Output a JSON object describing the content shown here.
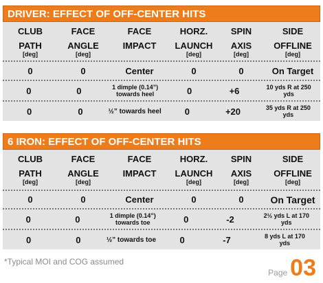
{
  "headers": [
    {
      "l1": "CLUB",
      "l2": "PATH",
      "l3": "[deg]"
    },
    {
      "l1": "FACE",
      "l2": "ANGLE",
      "l3": "[deg]"
    },
    {
      "l1": "FACE",
      "l2": "IMPACT",
      "l3": ""
    },
    {
      "l1": "HORZ.",
      "l2": "LAUNCH",
      "l3": "[deg]"
    },
    {
      "l1": "SPIN",
      "l2": "AXIS",
      "l3": "[deg]"
    },
    {
      "l1": "SIDE",
      "l2": "OFFLINE",
      "l3": "[deg]"
    }
  ],
  "driver": {
    "title": "DRIVER: EFFECT OF OFF-CENTER HITS",
    "rows": [
      {
        "path": "0",
        "angle": "0",
        "impact": "Center",
        "launch": "0",
        "axis": "0",
        "offline": "On Target"
      },
      {
        "path": "0",
        "angle": "0",
        "impact": "1 dimple (0.14”) towards heel",
        "launch": "0",
        "axis": "+6",
        "offline": "10 yds R at 250 yds"
      },
      {
        "path": "0",
        "angle": "0",
        "impact": "½” towards heel",
        "launch": "0",
        "axis": "+20",
        "offline": "35 yds R at 250 yds"
      }
    ]
  },
  "iron": {
    "title": "6 IRON: EFFECT OF OFF-CENTER HITS",
    "rows": [
      {
        "path": "0",
        "angle": "0",
        "impact": "Center",
        "launch": "0",
        "axis": "0",
        "offline": "On Target"
      },
      {
        "path": "0",
        "angle": "0",
        "impact": "1 dimple (0.14”) towards toe",
        "launch": "0",
        "axis": "-2",
        "offline": "2½ yds L at 170 yds"
      },
      {
        "path": "0",
        "angle": "0",
        "impact": "½” towards toe",
        "launch": "0",
        "axis": "-7",
        "offline": "8 yds L at 170 yds"
      }
    ]
  },
  "footnote": "*Typical MOI and COG assumed",
  "page": {
    "label": "Page",
    "number": "03"
  },
  "colors": {
    "accent": "#ee7c1a",
    "panel": "#e3e3e3"
  }
}
